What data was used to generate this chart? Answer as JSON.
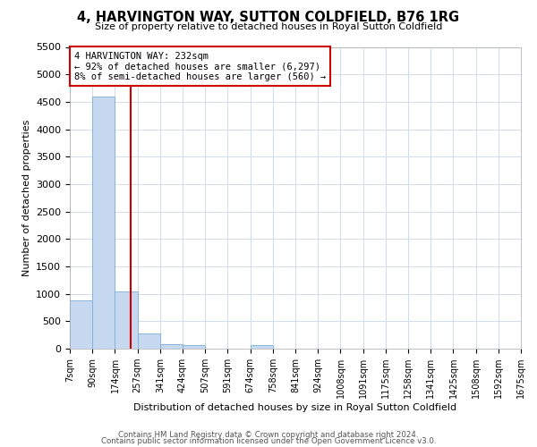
{
  "title": "4, HARVINGTON WAY, SUTTON COLDFIELD, B76 1RG",
  "subtitle": "Size of property relative to detached houses in Royal Sutton Coldfield",
  "xlabel": "Distribution of detached houses by size in Royal Sutton Coldfield",
  "ylabel": "Number of detached properties",
  "footnote1": "Contains HM Land Registry data © Crown copyright and database right 2024.",
  "footnote2": "Contains public sector information licensed under the Open Government Licence v3.0.",
  "property_size": 232,
  "property_line_color": "#cc0000",
  "bar_color": "#c6d9f0",
  "bar_edge_color": "#7bafd4",
  "annotation_box_color": "#cc0000",
  "annotation_line1": "4 HARVINGTON WAY: 232sqm",
  "annotation_line2": "← 92% of detached houses are smaller (6,297)",
  "annotation_line3": "8% of semi-detached houses are larger (560) →",
  "bin_edges": [
    7,
    90,
    174,
    257,
    341,
    424,
    507,
    591,
    674,
    758,
    841,
    924,
    1008,
    1091,
    1175,
    1258,
    1341,
    1425,
    1508,
    1592,
    1675
  ],
  "bin_labels": [
    "7sqm",
    "90sqm",
    "174sqm",
    "257sqm",
    "341sqm",
    "424sqm",
    "507sqm",
    "591sqm",
    "674sqm",
    "758sqm",
    "841sqm",
    "924sqm",
    "1008sqm",
    "1091sqm",
    "1175sqm",
    "1258sqm",
    "1341sqm",
    "1425sqm",
    "1508sqm",
    "1592sqm",
    "1675sqm"
  ],
  "bar_heights": [
    880,
    4600,
    1050,
    280,
    80,
    60,
    0,
    0,
    60,
    0,
    0,
    0,
    0,
    0,
    0,
    0,
    0,
    0,
    0,
    0
  ],
  "ylim": [
    0,
    5500
  ],
  "yticks": [
    0,
    500,
    1000,
    1500,
    2000,
    2500,
    3000,
    3500,
    4000,
    4500,
    5000,
    5500
  ],
  "grid_color": "#d0dce8",
  "background_color": "#ffffff"
}
